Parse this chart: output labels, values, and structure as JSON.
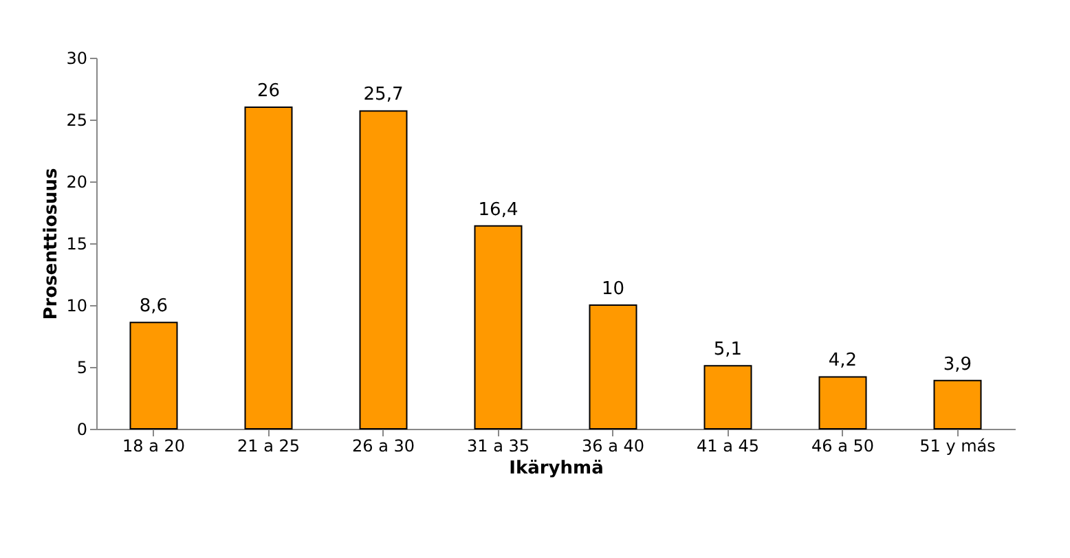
{
  "chart_data": {
    "type": "bar",
    "categories": [
      "18 a 20",
      "21 a 25",
      "26 a 30",
      "31 a 35",
      "36 a 40",
      "41 a 45",
      "46 a 50",
      "51 y más"
    ],
    "values": [
      8.6,
      26,
      25.7,
      16.4,
      10,
      5.1,
      4.2,
      3.9
    ],
    "value_labels": [
      "8,6",
      "26",
      "25,7",
      "16,4",
      "10",
      "5,1",
      "4,2",
      "3,9"
    ],
    "color": "#ff9900",
    "xlabel": "Ikäryhmä",
    "ylabel": "Prosenttiosuus",
    "ylim": [
      0,
      30
    ],
    "yticks": [
      0,
      5,
      10,
      15,
      20,
      25,
      30
    ],
    "grid": false
  }
}
